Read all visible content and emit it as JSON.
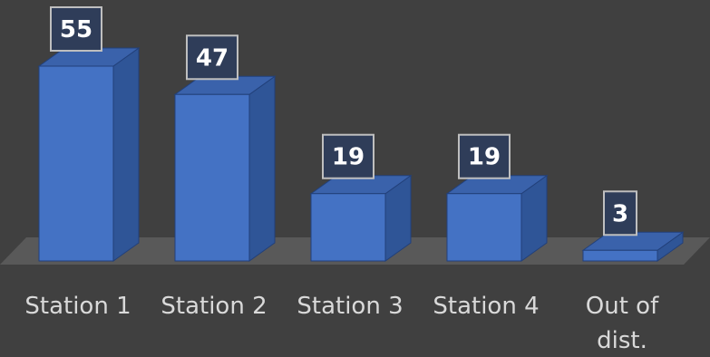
{
  "chart_data": {
    "type": "bar",
    "categories": [
      "Station 1",
      "Station 2",
      "Station 3",
      "Station 4",
      "Out of dist."
    ],
    "values": [
      55,
      47,
      19,
      19,
      3
    ],
    "title": "",
    "xlabel": "",
    "ylabel": "",
    "ylim": [
      0,
      55
    ],
    "grid": false,
    "legend": "none",
    "style": "3d-column",
    "colors": {
      "background": "#404040",
      "floor": "#595959",
      "bar_front": "#4472c4",
      "bar_side": "#2f5597",
      "bar_top": "#3a62ab",
      "label_box": "#2f3d59",
      "label_border": "#bfbfbf",
      "category_text": "#d9d9d9",
      "value_text": "#ffffff"
    }
  }
}
